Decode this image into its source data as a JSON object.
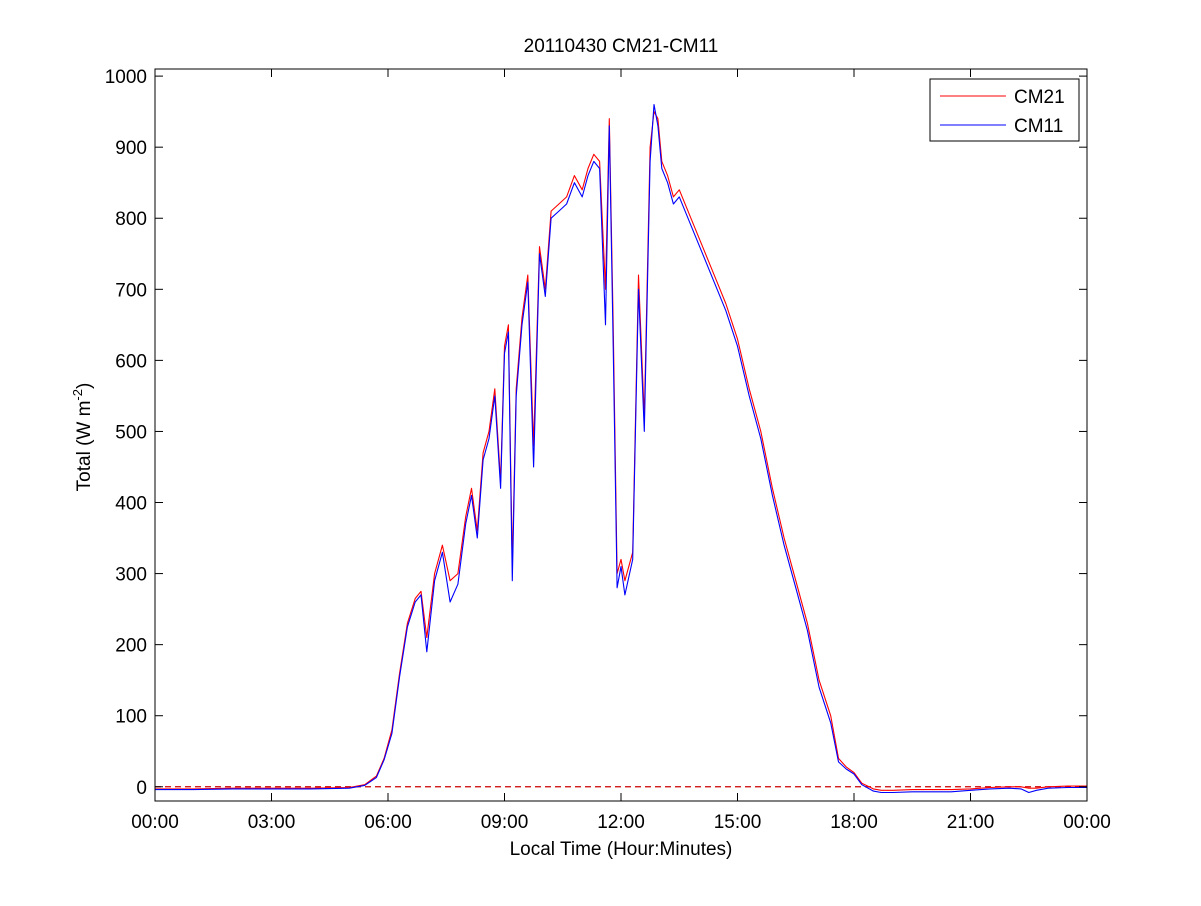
{
  "chart_data": {
    "type": "line",
    "title": "20110430 CM21-CM11",
    "xlabel": "Local Time (Hour:Minutes)",
    "ylabel": "Total (W m",
    "ylabel_sup": "-2",
    "ylabel_close": ")",
    "xlim": [
      0,
      24
    ],
    "ylim": [
      -20,
      1010
    ],
    "x_ticks": [
      0,
      3,
      6,
      9,
      12,
      15,
      18,
      21,
      24
    ],
    "x_tick_labels": [
      "00:00",
      "03:00",
      "06:00",
      "09:00",
      "12:00",
      "15:00",
      "18:00",
      "21:00",
      "00:00"
    ],
    "y_ticks": [
      0,
      100,
      200,
      300,
      400,
      500,
      600,
      700,
      800,
      900,
      1000
    ],
    "y_tick_labels": [
      "0",
      "100",
      "200",
      "300",
      "400",
      "500",
      "600",
      "700",
      "800",
      "900",
      "1000"
    ],
    "grid": false,
    "legend_position": "top-right",
    "reference_line": {
      "y": 0,
      "style": "dashed",
      "color": "#cc0000"
    },
    "series": [
      {
        "name": "CM21",
        "color": "#ff0000",
        "x": [
          0,
          1,
          2,
          3,
          4,
          5,
          5.4,
          5.7,
          5.9,
          6.1,
          6.3,
          6.5,
          6.7,
          6.85,
          7.0,
          7.2,
          7.4,
          7.6,
          7.8,
          8.0,
          8.15,
          8.3,
          8.45,
          8.6,
          8.75,
          8.9,
          9.0,
          9.1,
          9.2,
          9.3,
          9.45,
          9.6,
          9.75,
          9.9,
          10.05,
          10.2,
          10.4,
          10.6,
          10.8,
          11.0,
          11.15,
          11.3,
          11.45,
          11.6,
          11.7,
          11.8,
          11.9,
          12.0,
          12.1,
          12.3,
          12.45,
          12.6,
          12.75,
          12.85,
          12.95,
          13.05,
          13.2,
          13.35,
          13.5,
          13.8,
          14.1,
          14.4,
          14.7,
          15.0,
          15.3,
          15.6,
          15.9,
          16.2,
          16.5,
          16.8,
          17.1,
          17.4,
          17.6,
          17.8,
          18.0,
          18.2,
          18.5,
          18.7,
          19.0,
          19.5,
          20.0,
          20.5,
          21.0,
          21.5,
          22.0,
          22.3,
          22.5,
          22.7,
          23.0,
          23.5,
          24.0
        ],
        "y": [
          -3,
          -3,
          -2,
          -2,
          -2,
          -1,
          3,
          15,
          40,
          80,
          160,
          230,
          265,
          275,
          210,
          300,
          340,
          290,
          300,
          380,
          420,
          360,
          470,
          500,
          560,
          430,
          620,
          650,
          310,
          560,
          660,
          720,
          480,
          760,
          700,
          810,
          820,
          830,
          860,
          840,
          870,
          890,
          880,
          700,
          940,
          650,
          300,
          320,
          290,
          330,
          720,
          520,
          900,
          950,
          940,
          880,
          860,
          830,
          840,
          800,
          760,
          720,
          680,
          630,
          560,
          500,
          420,
          350,
          290,
          230,
          150,
          100,
          40,
          28,
          20,
          5,
          -3,
          -5,
          -5,
          -4,
          -4,
          -4,
          -3,
          -1,
          0,
          0,
          -2,
          -2,
          0,
          1,
          1
        ]
      },
      {
        "name": "CM11",
        "color": "#0000ff",
        "x": [
          0,
          1,
          2,
          3,
          4,
          5,
          5.4,
          5.7,
          5.9,
          6.1,
          6.3,
          6.5,
          6.7,
          6.85,
          7.0,
          7.2,
          7.4,
          7.6,
          7.8,
          8.0,
          8.15,
          8.3,
          8.45,
          8.6,
          8.75,
          8.9,
          9.0,
          9.1,
          9.2,
          9.3,
          9.45,
          9.6,
          9.75,
          9.9,
          10.05,
          10.2,
          10.4,
          10.6,
          10.8,
          11.0,
          11.15,
          11.3,
          11.45,
          11.6,
          11.7,
          11.8,
          11.9,
          12.0,
          12.1,
          12.3,
          12.45,
          12.6,
          12.75,
          12.85,
          12.95,
          13.05,
          13.2,
          13.35,
          13.5,
          13.8,
          14.1,
          14.4,
          14.7,
          15.0,
          15.3,
          15.6,
          15.9,
          16.2,
          16.5,
          16.8,
          17.1,
          17.4,
          17.6,
          17.8,
          18.0,
          18.2,
          18.5,
          18.7,
          19.0,
          19.5,
          20.0,
          20.5,
          21.0,
          21.5,
          22.0,
          22.3,
          22.5,
          22.7,
          23.0,
          23.5,
          24.0
        ],
        "y": [
          -4,
          -4,
          -3,
          -3,
          -3,
          -2,
          2,
          13,
          38,
          75,
          155,
          225,
          260,
          270,
          190,
          290,
          330,
          260,
          285,
          370,
          410,
          350,
          460,
          490,
          550,
          420,
          610,
          640,
          290,
          550,
          650,
          710,
          450,
          750,
          690,
          800,
          810,
          820,
          850,
          830,
          860,
          880,
          870,
          650,
          930,
          620,
          280,
          310,
          270,
          320,
          700,
          500,
          880,
          960,
          930,
          870,
          850,
          820,
          830,
          790,
          750,
          710,
          670,
          620,
          550,
          490,
          410,
          340,
          280,
          220,
          140,
          90,
          35,
          25,
          18,
          3,
          -6,
          -8,
          -8,
          -7,
          -7,
          -7,
          -5,
          -3,
          -2,
          -3,
          -8,
          -5,
          -2,
          -1,
          -1
        ]
      }
    ]
  }
}
